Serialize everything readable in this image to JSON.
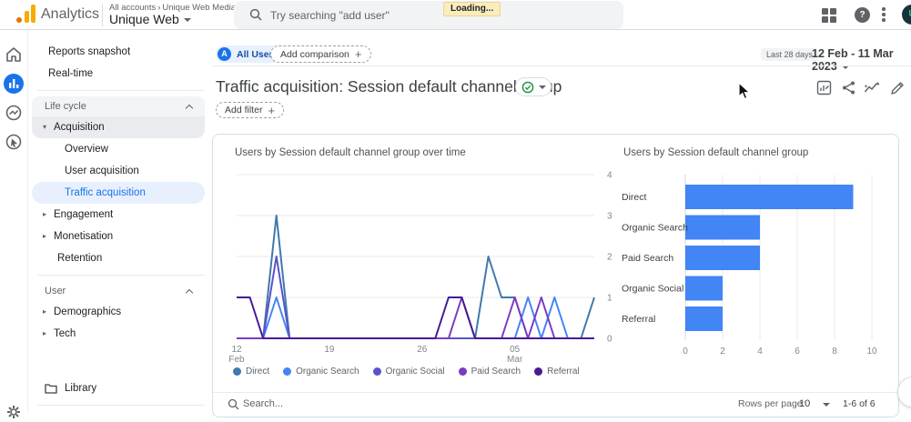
{
  "app": {
    "product": "Analytics",
    "account_path": "All accounts",
    "account_name": "Unique Web Media",
    "property_name": "Unique Web",
    "search": {
      "placeholder": "Try searching \"add user\""
    },
    "loading_label": "Loading...",
    "avatar_initial": "U",
    "help_glyph": "?"
  },
  "icon_rail": [
    {
      "name": "home"
    },
    {
      "name": "reports",
      "active": true
    },
    {
      "name": "explore"
    },
    {
      "name": "advertising"
    },
    {
      "name": "admin-gear"
    }
  ],
  "sidebar": {
    "items": [
      {
        "type": "item",
        "label": "Reports snapshot"
      },
      {
        "type": "item",
        "label": "Real-time"
      },
      {
        "type": "divider"
      },
      {
        "type": "header",
        "label": "Life cycle",
        "chevron": "up",
        "shadedTop": true
      },
      {
        "type": "parent",
        "label": "Acquisition",
        "state": "expanded",
        "shaded": true
      },
      {
        "type": "child",
        "label": "Overview"
      },
      {
        "type": "child",
        "label": "User acquisition"
      },
      {
        "type": "child",
        "label": "Traffic acquisition",
        "active": true
      },
      {
        "type": "parent",
        "label": "Engagement",
        "state": "collapsed"
      },
      {
        "type": "parent",
        "label": "Monetisation",
        "state": "collapsed"
      },
      {
        "type": "plain",
        "label": "Retention"
      },
      {
        "type": "divider"
      },
      {
        "type": "header",
        "label": "User",
        "chevron": "up"
      },
      {
        "type": "parent",
        "label": "Demographics",
        "state": "collapsed"
      },
      {
        "type": "parent",
        "label": "Tech",
        "state": "collapsed"
      },
      {
        "type": "spacer"
      },
      {
        "type": "library",
        "label": "Library"
      },
      {
        "type": "divider"
      }
    ]
  },
  "report_header": {
    "audience_initial": "A",
    "audience_chip": "All Users",
    "add_comparison_label": "Add comparison",
    "plus_glyph": "+",
    "date_preset": "Last 28 days",
    "date_range": "12 Feb - 11 Mar 2023",
    "title": "Traffic acquisition: Session default channel group",
    "add_filter_label": "Add filter",
    "action_icons": [
      "edit-comparisons-icon",
      "share-report-icon",
      "insights-icon",
      "edit-report-icon"
    ]
  },
  "chart_data": [
    {
      "type": "line",
      "title": "Users by Session default channel group over time",
      "ylim": [
        0,
        4
      ],
      "yticks": [
        0,
        1,
        2,
        3,
        4
      ],
      "x_days": 28,
      "x_start": "12 Feb",
      "x_end": "11 Mar",
      "xticks": [
        {
          "pos": 0,
          "label": "12",
          "sub": "Feb"
        },
        {
          "pos": 7,
          "label": "19",
          "sub": ""
        },
        {
          "pos": 14,
          "label": "26",
          "sub": ""
        },
        {
          "pos": 21,
          "label": "05",
          "sub": "Mar"
        }
      ],
      "grid": true,
      "legend_position": "bottom",
      "series": [
        {
          "name": "Direct",
          "color": "#3f79ad",
          "values": [
            0,
            0,
            0,
            3,
            0,
            0,
            0,
            0,
            0,
            0,
            0,
            0,
            0,
            0,
            0,
            0,
            0,
            0,
            0,
            2,
            1,
            1,
            0,
            0,
            0,
            0,
            0,
            1
          ]
        },
        {
          "name": "Organic Search",
          "color": "#4285f4",
          "values": [
            0,
            0,
            0,
            1,
            0,
            0,
            0,
            0,
            0,
            0,
            0,
            0,
            0,
            0,
            0,
            0,
            0,
            0,
            0,
            0,
            0,
            0,
            1,
            0,
            1,
            0,
            0,
            0
          ]
        },
        {
          "name": "Organic Social",
          "color": "#5b52cc",
          "values": [
            0,
            0,
            0,
            2,
            0,
            0,
            0,
            0,
            0,
            0,
            0,
            0,
            0,
            0,
            0,
            0,
            0,
            0,
            0,
            0,
            0,
            0,
            0,
            0,
            0,
            0,
            0,
            0
          ]
        },
        {
          "name": "Paid Search",
          "color": "#7d3ac1",
          "values": [
            0,
            0,
            0,
            0,
            0,
            0,
            0,
            0,
            0,
            0,
            0,
            0,
            0,
            0,
            0,
            0,
            0,
            1,
            0,
            0,
            0,
            1,
            0,
            1,
            0,
            0,
            0,
            0
          ]
        },
        {
          "name": "Referral",
          "color": "#471b92",
          "values": [
            1,
            1,
            0,
            0,
            0,
            0,
            0,
            0,
            0,
            0,
            0,
            0,
            0,
            0,
            0,
            0,
            1,
            1,
            0,
            0,
            0,
            0,
            0,
            0,
            0,
            0,
            0,
            0
          ]
        }
      ]
    },
    {
      "type": "bar",
      "orientation": "horizontal",
      "title": "Users by Session default channel group",
      "categories": [
        "Direct",
        "Organic Search",
        "Paid Search",
        "Organic Social",
        "Referral"
      ],
      "values": [
        9,
        4,
        4,
        2,
        2
      ],
      "bar_color": "#4285f4",
      "xlim": [
        0,
        10
      ],
      "xticks": [
        0,
        2,
        4,
        6,
        8,
        10
      ],
      "grid": true
    }
  ],
  "table_footer": {
    "search_placeholder": "Search...",
    "rows_per_page_label": "Rows per page:",
    "rows_per_page_value": "10",
    "pagination_range": "1-6 of 6"
  },
  "colors": {
    "accent": "#1a73e8",
    "chip_bg": "#e8f0fe",
    "bar_blue": "#4285f4",
    "loading_bg": "#f9edbe",
    "logo_orange": "#f9ab00",
    "logo_dark_orange": "#e37400",
    "check_green": "#1e8e3e",
    "grid_line": "#e9eaec",
    "axis_text": "#80868b"
  }
}
